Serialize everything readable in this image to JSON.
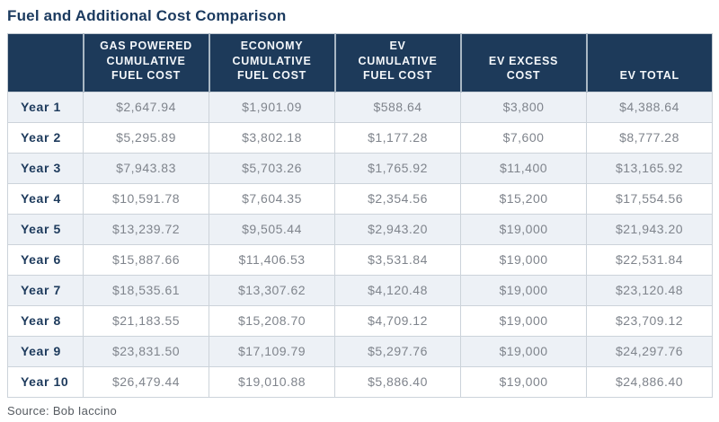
{
  "title": "Fuel and Additional Cost Comparison",
  "source": "Source: Bob Iaccino",
  "colors": {
    "header_bg": "#1d3a5a",
    "header_text": "#f4f7fa",
    "title_text": "#1b3a5f",
    "row_alt_bg": "#edf1f6",
    "row_bg": "#ffffff",
    "value_text": "#7f848c",
    "year_text": "#1d3a5c",
    "border": "#ccd3da",
    "source_text": "#565b61"
  },
  "chart_data": {
    "type": "table",
    "title": "Fuel and Additional Cost Comparison",
    "columns": [
      "",
      "GAS POWERED\nCUMULATIVE\nFUEL COST",
      "ECONOMY\nCUMULATIVE\nFUEL COST",
      "EV\nCUMULATIVE\nFUEL COST",
      "EV EXCESS\nCOST",
      "EV TOTAL"
    ],
    "rows": [
      {
        "label": "Year 1",
        "values": [
          "$2,647.94",
          "$1,901.09",
          "$588.64",
          "$3,800",
          "$4,388.64"
        ]
      },
      {
        "label": "Year 2",
        "values": [
          "$5,295.89",
          "$3,802.18",
          "$1,177.28",
          "$7,600",
          "$8,777.28"
        ]
      },
      {
        "label": "Year 3",
        "values": [
          "$7,943.83",
          "$5,703.26",
          "$1,765.92",
          "$11,400",
          "$13,165.92"
        ]
      },
      {
        "label": "Year 4",
        "values": [
          "$10,591.78",
          "$7,604.35",
          "$2,354.56",
          "$15,200",
          "$17,554.56"
        ]
      },
      {
        "label": "Year 5",
        "values": [
          "$13,239.72",
          "$9,505.44",
          "$2,943.20",
          "$19,000",
          "$21,943.20"
        ]
      },
      {
        "label": "Year 6",
        "values": [
          "$15,887.66",
          "$11,406.53",
          "$3,531.84",
          "$19,000",
          "$22,531.84"
        ]
      },
      {
        "label": "Year 7",
        "values": [
          "$18,535.61",
          "$13,307.62",
          "$4,120.48",
          "$19,000",
          "$23,120.48"
        ]
      },
      {
        "label": "Year 8",
        "values": [
          "$21,183.55",
          "$15,208.70",
          "$4,709.12",
          "$19,000",
          "$23,709.12"
        ]
      },
      {
        "label": "Year 9",
        "values": [
          "$23,831.50",
          "$17,109.79",
          "$5,297.76",
          "$19,000",
          "$24,297.76"
        ]
      },
      {
        "label": "Year 10",
        "values": [
          "$26,479.44",
          "$19,010.88",
          "$5,886.40",
          "$19,000",
          "$24,886.40"
        ]
      }
    ]
  }
}
